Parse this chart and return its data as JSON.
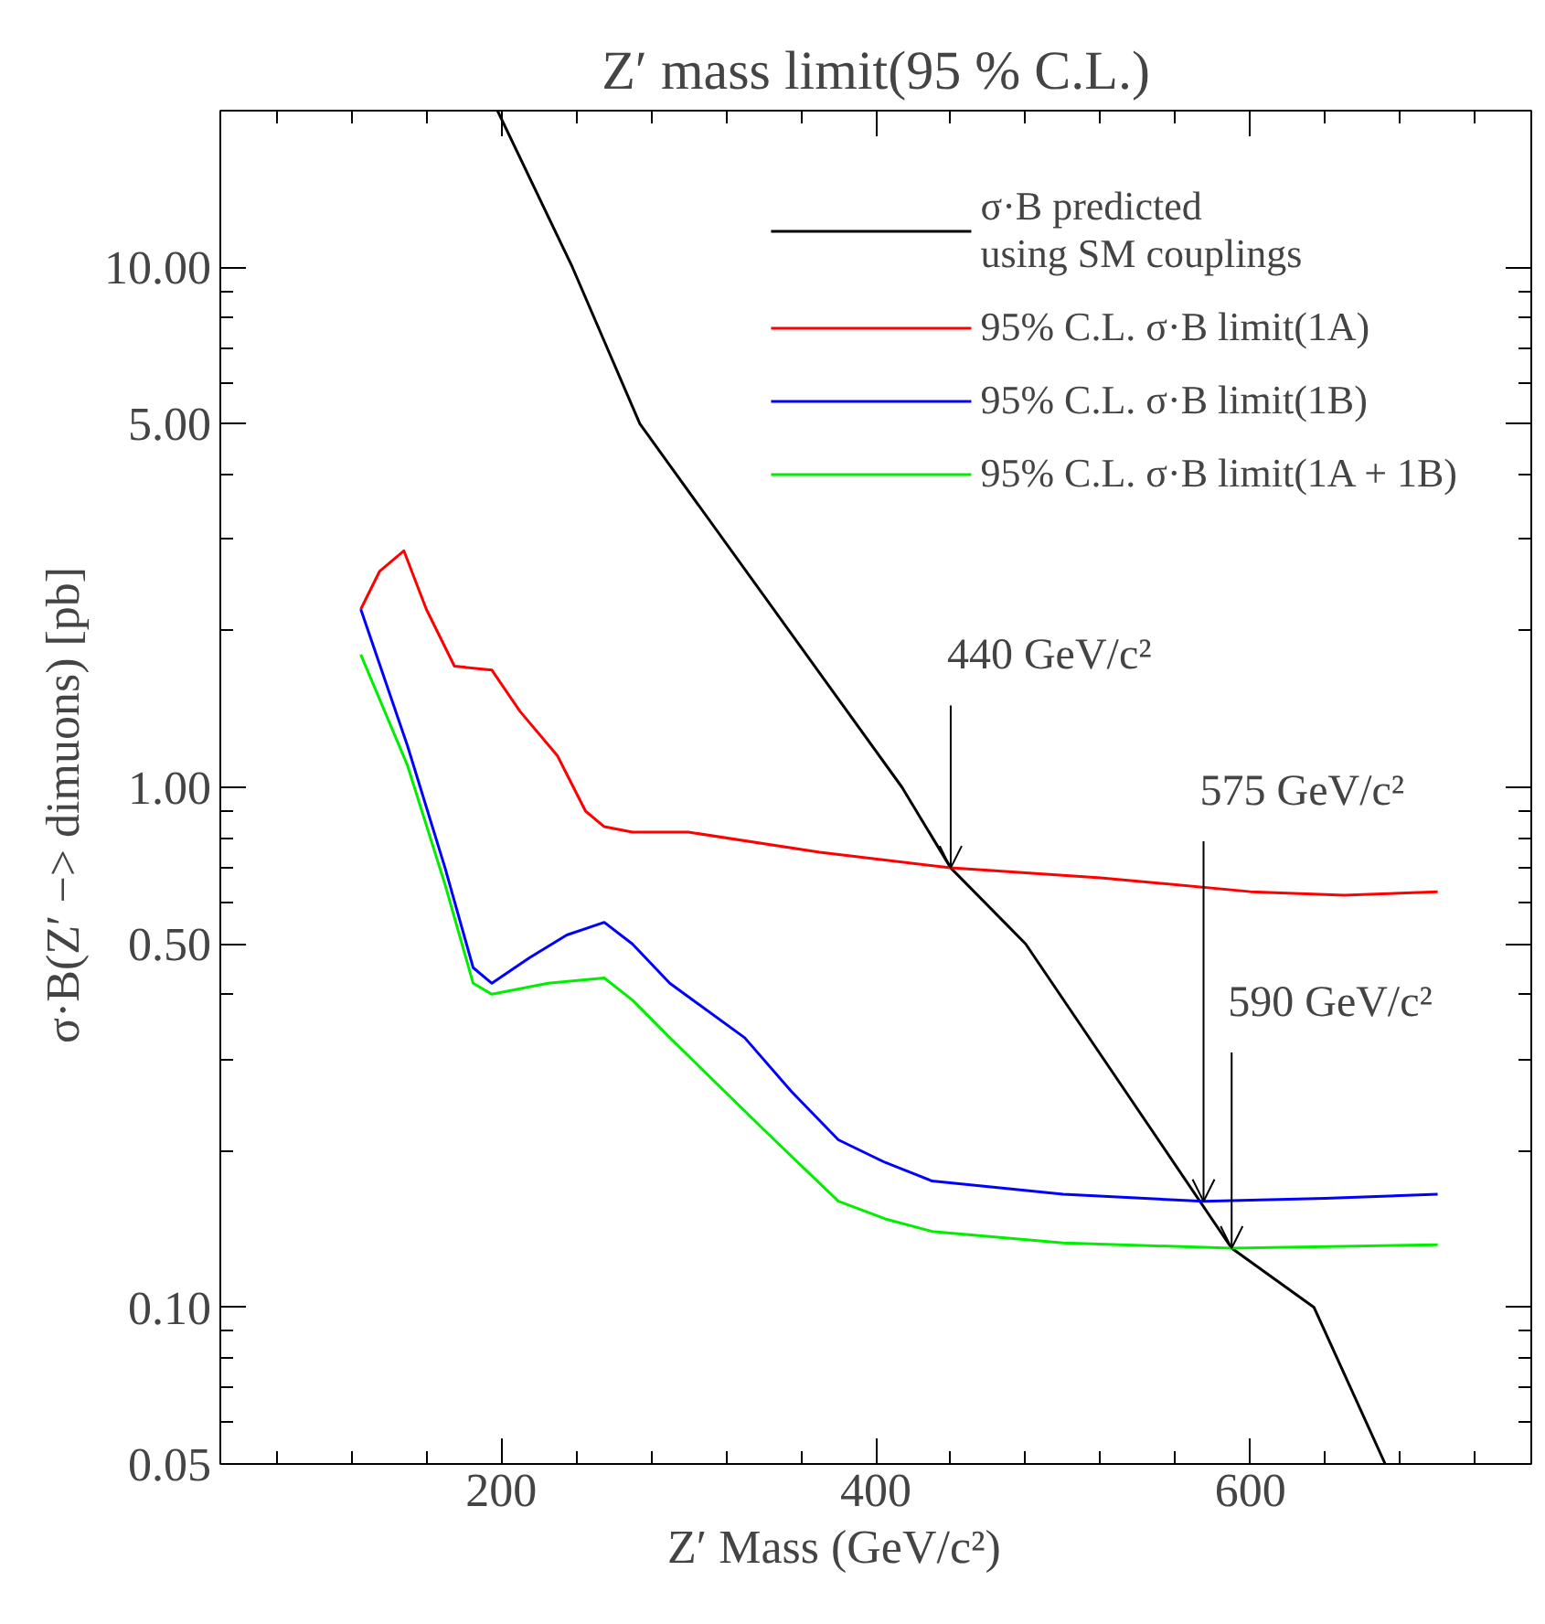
{
  "chart_data": {
    "type": "line",
    "title": "Z′ mass limit(95 % C.L.)",
    "xlabel": "Z′ Mass        (GeV/c²)",
    "ylabel": "σ·B(Z′ −> dimuons)    [pb]",
    "log": "y",
    "xlim": [
      50,
      750
    ],
    "ylim": [
      0.05,
      20
    ],
    "xticks": [
      200,
      400,
      600
    ],
    "yticks": [
      {
        "value": 0.05,
        "label": "0.05"
      },
      {
        "value": 0.1,
        "label": "0.10"
      },
      {
        "value": 0.5,
        "label": "0.50"
      },
      {
        "value": 1,
        "label": "1.00"
      },
      {
        "value": 5,
        "label": "5.00"
      },
      {
        "value": 10,
        "label": "10.00"
      }
    ],
    "grid": false,
    "legend": "top right",
    "series": [
      {
        "name": "σ·B predicted\nusing SM couplings",
        "color": "#000000",
        "x": [
          198,
          238,
          274,
          414,
          440,
          480,
          590,
          634,
          672
        ],
        "values": [
          20,
          10,
          5,
          1,
          0.7,
          0.5,
          0.13,
          0.1,
          0.05
        ]
      },
      {
        "name": "95% C.L. σ·B limit(1A)",
        "color": "#ff0000",
        "x": [
          125,
          135,
          148,
          160,
          175,
          195,
          210,
          230,
          245,
          255,
          270,
          300,
          370,
          440,
          520,
          600,
          650,
          700
        ],
        "values": [
          2.2,
          2.6,
          2.85,
          2.2,
          1.71,
          1.68,
          1.4,
          1.15,
          0.9,
          0.84,
          0.82,
          0.82,
          0.75,
          0.7,
          0.67,
          0.63,
          0.62,
          0.63
        ]
      },
      {
        "name": "95% C.L. σ·B limit(1B)",
        "color": "#0000ff",
        "x": [
          125,
          150,
          170,
          185,
          195,
          215,
          235,
          255,
          270,
          290,
          330,
          355,
          380,
          405,
          430,
          500,
          575,
          640,
          700
        ],
        "values": [
          2.2,
          1.2,
          0.7,
          0.45,
          0.42,
          0.47,
          0.52,
          0.55,
          0.5,
          0.42,
          0.33,
          0.26,
          0.21,
          0.19,
          0.175,
          0.165,
          0.16,
          0.162,
          0.165
        ]
      },
      {
        "name": "95% C.L. σ·B limit(1A + 1B)",
        "color": "#00ee00",
        "x": [
          125,
          150,
          170,
          185,
          195,
          225,
          255,
          270,
          290,
          340,
          380,
          405,
          430,
          500,
          590,
          700
        ],
        "values": [
          1.8,
          1.1,
          0.65,
          0.42,
          0.4,
          0.42,
          0.43,
          0.39,
          0.33,
          0.22,
          0.16,
          0.148,
          0.14,
          0.133,
          0.13,
          0.132
        ]
      }
    ],
    "annotations": [
      {
        "text": "440 GeV/c²",
        "x": 440,
        "y": 0.7
      },
      {
        "text": "575 GeV/c²",
        "x": 575,
        "y": 0.16
      },
      {
        "text": "590 GeV/c²",
        "x": 590,
        "y": 0.13
      }
    ]
  }
}
